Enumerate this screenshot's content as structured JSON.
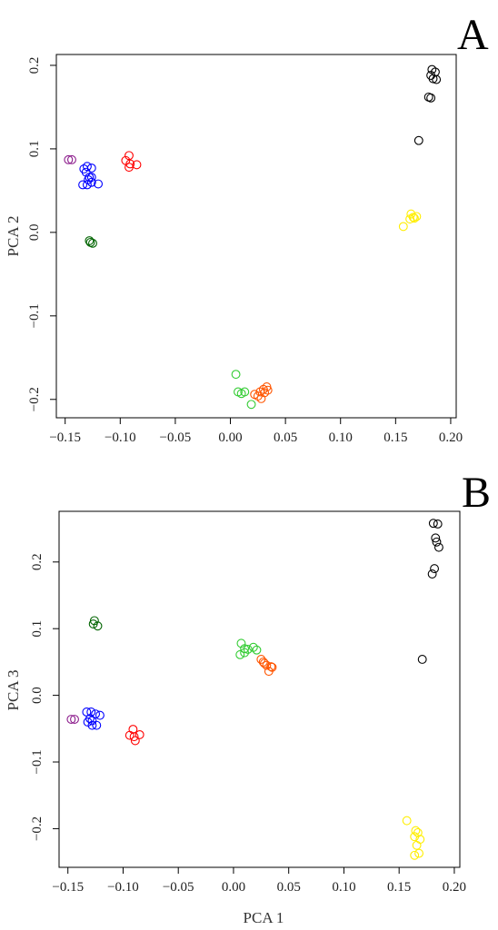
{
  "chart_data": [
    {
      "panel": "A",
      "type": "scatter",
      "xlabel": "",
      "ylabel": "PCA 2",
      "xticks": [
        -0.15,
        -0.1,
        -0.05,
        0.0,
        0.05,
        0.1,
        0.15,
        0.2
      ],
      "xtick_labels": [
        "−0.15",
        "−0.10",
        "−0.05",
        "0.00",
        "0.05",
        "0.10",
        "0.15",
        "0.20"
      ],
      "yticks": [
        -0.2,
        -0.1,
        0.0,
        0.1,
        0.2
      ],
      "ytick_labels": [
        "−0.2",
        "−0.1",
        "0.0",
        "0.1",
        "0.2"
      ],
      "xlim": [
        -0.158,
        0.205
      ],
      "ylim": [
        -0.222,
        0.213
      ],
      "grid": false,
      "legend": "none",
      "series": [
        {
          "color": "#000000",
          "points": [
            [
              0.183,
              0.195
            ],
            [
              0.186,
              0.192
            ],
            [
              0.182,
              0.188
            ],
            [
              0.184,
              0.184
            ],
            [
              0.187,
              0.183
            ],
            [
              0.18,
              0.162
            ],
            [
              0.182,
              0.161
            ],
            [
              0.171,
              0.11
            ]
          ]
        },
        {
          "color": "#ffee00",
          "points": [
            [
              0.164,
              0.022
            ],
            [
              0.166,
              0.018
            ],
            [
              0.169,
              0.019
            ],
            [
              0.163,
              0.016
            ],
            [
              0.167,
              0.017
            ],
            [
              0.157,
              0.007
            ]
          ]
        },
        {
          "color": "#8b1a8b",
          "points": [
            [
              -0.147,
              0.087
            ],
            [
              -0.144,
              0.087
            ]
          ]
        },
        {
          "color": "#0000ff",
          "points": [
            [
              -0.133,
              0.076
            ],
            [
              -0.13,
              0.079
            ],
            [
              -0.126,
              0.077
            ],
            [
              -0.131,
              0.072
            ],
            [
              -0.128,
              0.066
            ],
            [
              -0.129,
              0.063
            ],
            [
              -0.126,
              0.066
            ],
            [
              -0.134,
              0.057
            ],
            [
              -0.13,
              0.057
            ],
            [
              -0.126,
              0.06
            ],
            [
              -0.12,
              0.058
            ]
          ]
        },
        {
          "color": "#ff0000",
          "points": [
            [
              -0.092,
              0.092
            ],
            [
              -0.095,
              0.086
            ],
            [
              -0.091,
              0.082
            ],
            [
              -0.085,
              0.081
            ],
            [
              -0.092,
              0.078
            ]
          ]
        },
        {
          "color": "#006400",
          "points": [
            [
              -0.128,
              -0.01
            ],
            [
              -0.127,
              -0.012
            ],
            [
              -0.125,
              -0.013
            ]
          ]
        },
        {
          "color": "#33cc33",
          "points": [
            [
              0.005,
              -0.17
            ],
            [
              0.007,
              -0.191
            ],
            [
              0.01,
              -0.193
            ],
            [
              0.013,
              -0.191
            ],
            [
              0.019,
              -0.206
            ]
          ]
        },
        {
          "color": "#ff5500",
          "points": [
            [
              0.022,
              -0.194
            ],
            [
              0.025,
              -0.196
            ],
            [
              0.027,
              -0.191
            ],
            [
              0.03,
              -0.188
            ],
            [
              0.033,
              -0.185
            ],
            [
              0.034,
              -0.189
            ],
            [
              0.028,
              -0.199
            ],
            [
              0.031,
              -0.192
            ]
          ]
        }
      ]
    },
    {
      "panel": "B",
      "type": "scatter",
      "xlabel": "PCA 1",
      "ylabel": "PCA 3",
      "xticks": [
        -0.15,
        -0.1,
        -0.05,
        0.0,
        0.05,
        0.1,
        0.15,
        0.2
      ],
      "xtick_labels": [
        "−0.15",
        "−0.10",
        "−0.05",
        "0.00",
        "0.05",
        "0.10",
        "0.15",
        "0.20"
      ],
      "yticks": [
        -0.2,
        -0.1,
        0.0,
        0.1,
        0.2
      ],
      "ytick_labels": [
        "−0.2",
        "−0.1",
        "0.0",
        "0.1",
        "0.2"
      ],
      "xlim": [
        -0.158,
        0.205
      ],
      "ylim": [
        -0.258,
        0.276
      ],
      "grid": false,
      "legend": "none",
      "series": [
        {
          "color": "#000000",
          "points": [
            [
              0.181,
              0.258
            ],
            [
              0.185,
              0.257
            ],
            [
              0.183,
              0.236
            ],
            [
              0.184,
              0.23
            ],
            [
              0.186,
              0.222
            ],
            [
              0.182,
              0.19
            ],
            [
              0.18,
              0.182
            ],
            [
              0.171,
              0.054
            ]
          ]
        },
        {
          "color": "#ffee00",
          "points": [
            [
              0.157,
              -0.188
            ],
            [
              0.165,
              -0.203
            ],
            [
              0.167,
              -0.206
            ],
            [
              0.164,
              -0.212
            ],
            [
              0.169,
              -0.216
            ],
            [
              0.166,
              -0.225
            ],
            [
              0.168,
              -0.237
            ],
            [
              0.164,
              -0.24
            ]
          ]
        },
        {
          "color": "#8b1a8b",
          "points": [
            [
              -0.147,
              -0.036
            ],
            [
              -0.144,
              -0.036
            ]
          ]
        },
        {
          "color": "#0000ff",
          "points": [
            [
              -0.133,
              -0.025
            ],
            [
              -0.129,
              -0.025
            ],
            [
              -0.125,
              -0.028
            ],
            [
              -0.121,
              -0.03
            ],
            [
              -0.13,
              -0.035
            ],
            [
              -0.128,
              -0.038
            ],
            [
              -0.132,
              -0.04
            ],
            [
              -0.128,
              -0.045
            ],
            [
              -0.124,
              -0.045
            ]
          ]
        },
        {
          "color": "#ff0000",
          "points": [
            [
              -0.091,
              -0.051
            ],
            [
              -0.094,
              -0.06
            ],
            [
              -0.09,
              -0.062
            ],
            [
              -0.085,
              -0.059
            ],
            [
              -0.089,
              -0.068
            ]
          ]
        },
        {
          "color": "#006400",
          "points": [
            [
              -0.126,
              0.112
            ],
            [
              -0.127,
              0.107
            ],
            [
              -0.123,
              0.104
            ]
          ]
        },
        {
          "color": "#33cc33",
          "points": [
            [
              0.007,
              0.078
            ],
            [
              0.01,
              0.07
            ],
            [
              0.013,
              0.069
            ],
            [
              0.018,
              0.072
            ],
            [
              0.006,
              0.061
            ],
            [
              0.01,
              0.064
            ],
            [
              0.021,
              0.068
            ]
          ]
        },
        {
          "color": "#ff5500",
          "points": [
            [
              0.025,
              0.054
            ],
            [
              0.028,
              0.048
            ],
            [
              0.03,
              0.045
            ],
            [
              0.034,
              0.043
            ],
            [
              0.035,
              0.042
            ],
            [
              0.032,
              0.036
            ],
            [
              0.027,
              0.05
            ]
          ]
        }
      ]
    }
  ],
  "panel_labels": {
    "a": "A",
    "b": "B"
  }
}
